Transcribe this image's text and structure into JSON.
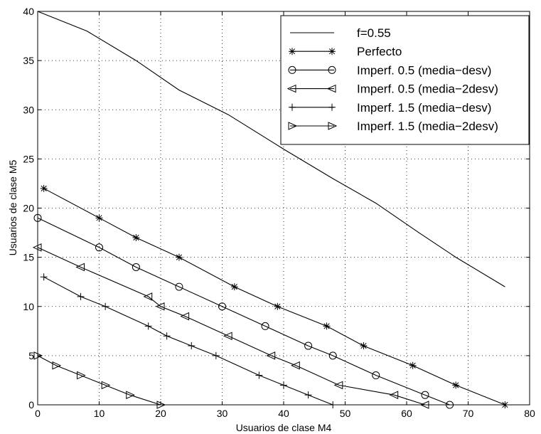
{
  "chart_data": {
    "type": "line",
    "title": "",
    "xlabel": "Usuarios de clase M4",
    "ylabel": "Usuarios de clase M5",
    "xlim": [
      0,
      80
    ],
    "ylim": [
      0,
      40
    ],
    "xticks": [
      0,
      10,
      20,
      30,
      40,
      50,
      60,
      70,
      80
    ],
    "yticks": [
      0,
      5,
      10,
      15,
      20,
      25,
      30,
      35,
      40
    ],
    "grid": true,
    "legend_position": "top-right",
    "series": [
      {
        "name": "f=0.55",
        "marker": "none",
        "x": [
          0,
          8,
          16,
          23,
          31,
          40,
          48,
          55,
          62,
          68,
          76
        ],
        "y": [
          40,
          38,
          35,
          32,
          29.5,
          26,
          23,
          20.5,
          17.5,
          15,
          12
        ]
      },
      {
        "name": "Perfecto",
        "marker": "star",
        "x": [
          1,
          10,
          16,
          23,
          32,
          39,
          47,
          53,
          61,
          68,
          76
        ],
        "y": [
          22,
          19,
          17,
          15,
          12,
          10,
          8,
          6,
          4,
          2,
          0
        ]
      },
      {
        "name": "Imperf. 0.5 (media−desv)",
        "marker": "circle",
        "x": [
          0,
          10,
          16,
          23,
          30,
          37,
          44,
          48,
          55,
          63,
          67
        ],
        "y": [
          19,
          16,
          14,
          12,
          10,
          8,
          6,
          5,
          3,
          1,
          0
        ]
      },
      {
        "name": "Imperf. 0.5 (media−2desv)",
        "marker": "triangle-left",
        "x": [
          0,
          7,
          18,
          20,
          24,
          31,
          38,
          42,
          49,
          58,
          63
        ],
        "y": [
          16,
          14,
          11,
          10,
          9,
          7,
          5,
          4,
          2,
          1,
          0
        ]
      },
      {
        "name": "Imperf. 1.5 (media−desv)",
        "marker": "plus",
        "x": [
          1,
          7,
          11,
          18,
          21,
          25,
          29,
          36,
          40,
          44,
          48
        ],
        "y": [
          13,
          11,
          10,
          8,
          7,
          6,
          5,
          3,
          2,
          1,
          0
        ]
      },
      {
        "name": "Imperf. 1.5 (media−2desv)",
        "marker": "triangle-right",
        "x": [
          0,
          3,
          7,
          11,
          15,
          20
        ],
        "y": [
          5,
          4,
          3,
          2,
          1,
          0
        ]
      }
    ]
  }
}
